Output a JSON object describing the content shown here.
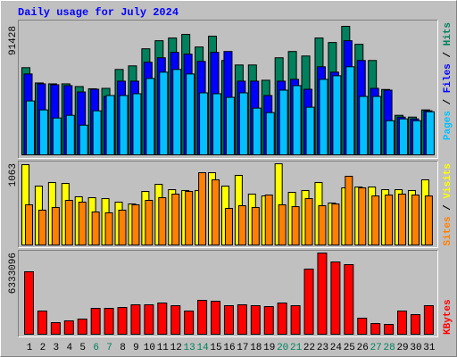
{
  "chart_data": [
    {
      "type": "bar",
      "title": "Daily usage for July 2024",
      "ylim": [
        0,
        91428
      ],
      "yticks": [
        91428
      ],
      "legend_separator": " / ",
      "series": [
        {
          "name": "Hits",
          "color": "#00805c",
          "values": [
            62020,
            51150,
            50510,
            50510,
            48590,
            47000,
            47310,
            60740,
            63300,
            75450,
            81200,
            83120,
            85680,
            76730,
            84400,
            67130,
            63940,
            63940,
            53070,
            69050,
            73530,
            70330,
            83120,
            79920,
            91428,
            78640,
            67130,
            46500,
            28130,
            26850,
            31970
          ]
        },
        {
          "name": "Files",
          "color": "#0000ff",
          "values": [
            57540,
            50510,
            49870,
            49230,
            44760,
            46670,
            41560,
            52430,
            52430,
            65850,
            69050,
            72890,
            71610,
            66490,
            72890,
            73530,
            52430,
            52430,
            42200,
            52430,
            53710,
            46670,
            62660,
            58820,
            81200,
            67130,
            47310,
            46030,
            26850,
            25570,
            31330
          ]
        },
        {
          "name": "Pages",
          "color": "#00c0ff",
          "values": [
            38360,
            31970,
            26220,
            28130,
            21100,
            31330,
            42200,
            42200,
            43480,
            54350,
            58820,
            60740,
            57540,
            44120,
            43480,
            40920,
            44120,
            33250,
            30050,
            46030,
            49230,
            33890,
            53710,
            56270,
            62660,
            41560,
            41560,
            24300,
            25570,
            24300,
            30690
          ]
        }
      ]
    },
    {
      "type": "bar",
      "ylim": [
        0,
        1063
      ],
      "yticks": [
        1063
      ],
      "legend_separator": " / ",
      "series": [
        {
          "name": "Visits",
          "color": "#ffff00",
          "values": [
            1051,
            771,
            818,
            806,
            631,
            619,
            607,
            561,
            537,
            701,
            794,
            724,
            713,
            713,
            946,
            771,
            911,
            666,
            642,
            1063,
            689,
            713,
            818,
            549,
            748,
            759,
            759,
            724,
            724,
            713,
            853
          ]
        },
        {
          "name": "Sites",
          "color": "#ff8000",
          "values": [
            526,
            456,
            491,
            584,
            561,
            432,
            421,
            456,
            526,
            584,
            619,
            666,
            701,
            946,
            853,
            479,
            514,
            491,
            654,
            526,
            502,
            607,
            514,
            537,
            899,
            748,
            642,
            654,
            666,
            654,
            642
          ]
        }
      ]
    },
    {
      "type": "bar",
      "ylim": [
        0,
        6333096
      ],
      "yticks": [
        6333096
      ],
      "categories": [
        "1",
        "2",
        "3",
        "4",
        "5",
        "6",
        "7",
        "8",
        "9",
        "10",
        "11",
        "12",
        "13",
        "14",
        "15",
        "16",
        "17",
        "18",
        "19",
        "20",
        "21",
        "22",
        "23",
        "24",
        "25",
        "26",
        "27",
        "28",
        "29",
        "30",
        "31"
      ],
      "category_colors": [
        "#000000",
        "#000000",
        "#000000",
        "#000000",
        "#000000",
        "#00805c",
        "#00805c",
        "#000000",
        "#000000",
        "#000000",
        "#000000",
        "#000000",
        "#00805c",
        "#00805c",
        "#000000",
        "#000000",
        "#000000",
        "#000000",
        "#000000",
        "#00805c",
        "#00805c",
        "#000000",
        "#000000",
        "#000000",
        "#000000",
        "#000000",
        "#00805c",
        "#00805c",
        "#000000",
        "#000000",
        "#000000"
      ],
      "series": [
        {
          "name": "KBytes",
          "color": "#ff0000",
          "values": [
            4871600,
            1809400,
            904700,
            1043900,
            1183100,
            2018200,
            2018200,
            2087800,
            2296600,
            2296600,
            2435800,
            2227000,
            1809400,
            2644600,
            2575000,
            2227000,
            2296600,
            2227000,
            2157400,
            2435800,
            2227000,
            5080400,
            6333096,
            5637100,
            5428300,
            1252700,
            835100,
            765500,
            1809400,
            1531100,
            2227000
          ]
        }
      ]
    }
  ]
}
